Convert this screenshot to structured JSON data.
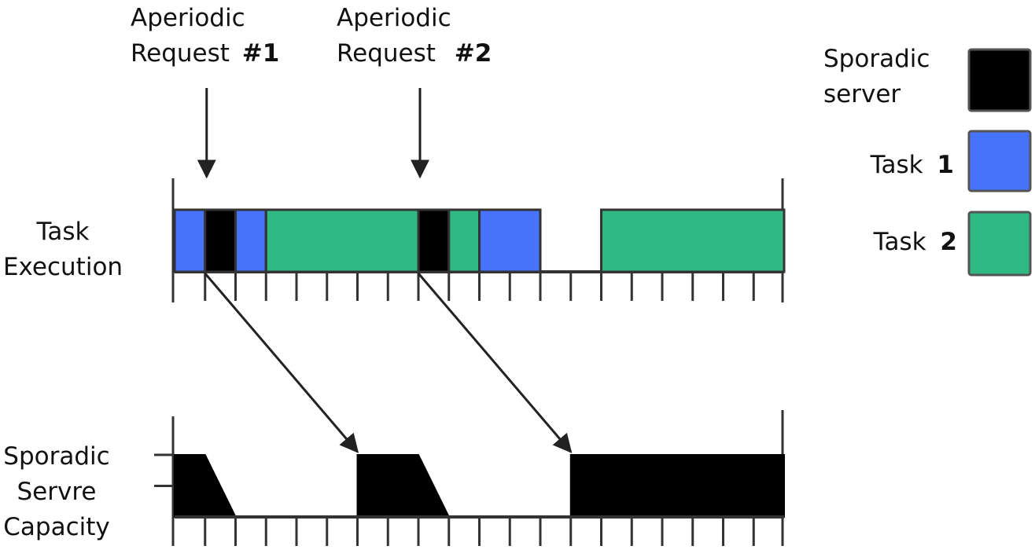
{
  "annotations": {
    "request_1": {
      "line1": "Aperiodic",
      "line2_text": "Request",
      "line2_num": "#1",
      "time": 1
    },
    "request_2": {
      "line1": "Aperiodic",
      "line2_text": "Request",
      "line2_num": "#2",
      "time": 8
    }
  },
  "rows": {
    "task_execution": {
      "line1": "Task",
      "line2": "Execution"
    },
    "server_capacity": {
      "line1": "Sporadic",
      "line2": "Servre",
      "line3": "Capacity"
    }
  },
  "legend": [
    {
      "label_text": "Sporadic",
      "label_line2": "server",
      "color": "#000000"
    },
    {
      "label_text": "Task",
      "label_num": "1",
      "color": "#4673f9"
    },
    {
      "label_text": "Task",
      "label_num": "2",
      "color": "#31b984"
    }
  ],
  "time_axis": {
    "start": 0,
    "end": 20,
    "tick_step": 1
  },
  "execution_segments": [
    {
      "task": "Task 1",
      "start": 0,
      "end": 1,
      "color": "#4673f9"
    },
    {
      "task": "Sporadic server",
      "start": 1,
      "end": 2,
      "color": "#000000"
    },
    {
      "task": "Task 1",
      "start": 2,
      "end": 3,
      "color": "#4673f9"
    },
    {
      "task": "Task 2",
      "start": 3,
      "end": 8,
      "color": "#31b984"
    },
    {
      "task": "Sporadic server",
      "start": 8,
      "end": 9,
      "color": "#000000"
    },
    {
      "task": "Task 2",
      "start": 9,
      "end": 10,
      "color": "#31b984"
    },
    {
      "task": "Task 1",
      "start": 10,
      "end": 12,
      "color": "#4673f9"
    },
    {
      "task": "Task 2",
      "start": 14,
      "end": 20,
      "color": "#31b984"
    }
  ],
  "capacity": {
    "max": 2,
    "levels": [
      2,
      1
    ],
    "profile": [
      [
        0,
        2
      ],
      [
        1,
        2
      ],
      [
        2,
        0
      ],
      [
        6,
        0
      ],
      [
        6,
        2
      ],
      [
        8,
        2
      ],
      [
        9,
        0
      ],
      [
        13,
        0
      ],
      [
        13,
        2
      ],
      [
        20,
        2
      ]
    ]
  },
  "replenishments": [
    {
      "from_time": 1,
      "to_time": 6
    },
    {
      "from_time": 8,
      "to_time": 13
    }
  ]
}
